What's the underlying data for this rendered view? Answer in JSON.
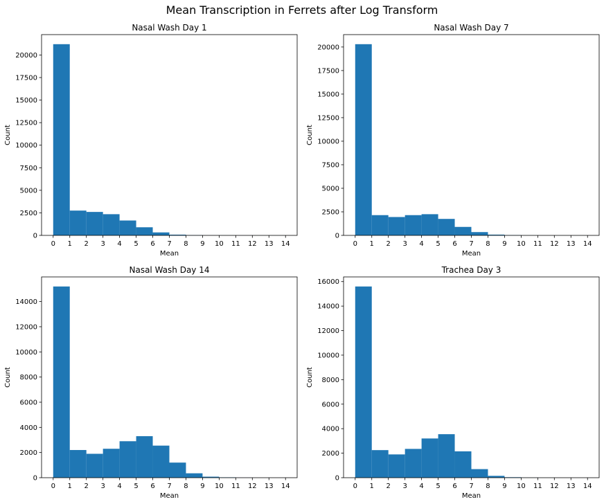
{
  "figure": {
    "suptitle": "Mean Transcription in Ferrets after Log Transform"
  },
  "chart_data": [
    {
      "type": "bar",
      "title": "Nasal Wash Day 1",
      "xlabel": "Mean",
      "ylabel": "Count",
      "color": "#1f77b4",
      "bin_edges": [
        0,
        1,
        2,
        3,
        4,
        5,
        6,
        7,
        8,
        9,
        10,
        11,
        12,
        13,
        14
      ],
      "values": [
        21200,
        2750,
        2600,
        2350,
        1650,
        900,
        330,
        80,
        30,
        10,
        5,
        2,
        1,
        1
      ],
      "xticks": [
        "0",
        "1",
        "2",
        "3",
        "4",
        "5",
        "6",
        "7",
        "8",
        "9",
        "10",
        "11",
        "12",
        "13",
        "14"
      ],
      "yticks": [
        0,
        2500,
        5000,
        7500,
        10000,
        12500,
        15000,
        17500,
        20000
      ],
      "xlim": [
        -0.7,
        14.7
      ],
      "ylim": [
        0,
        22260
      ],
      "grid": false
    },
    {
      "type": "bar",
      "title": "Nasal Wash Day 7",
      "xlabel": "Mean",
      "ylabel": "Count",
      "color": "#1f77b4",
      "bin_edges": [
        0,
        1,
        2,
        3,
        4,
        5,
        6,
        7,
        8,
        9,
        10,
        11,
        12,
        13,
        14
      ],
      "values": [
        20300,
        2150,
        1950,
        2150,
        2250,
        1750,
        900,
        350,
        80,
        30,
        5,
        2,
        1,
        1
      ],
      "xticks": [
        "0",
        "1",
        "2",
        "3",
        "4",
        "5",
        "6",
        "7",
        "8",
        "9",
        "10",
        "11",
        "12",
        "13",
        "14"
      ],
      "yticks": [
        0,
        2500,
        5000,
        7500,
        10000,
        12500,
        15000,
        17500,
        20000
      ],
      "xlim": [
        -0.7,
        14.7
      ],
      "ylim": [
        0,
        21315
      ],
      "grid": false
    },
    {
      "type": "bar",
      "title": "Nasal Wash Day 14",
      "xlabel": "Mean",
      "ylabel": "Count",
      "color": "#1f77b4",
      "bin_edges": [
        0,
        1,
        2,
        3,
        4,
        5,
        6,
        7,
        8,
        9,
        10,
        11,
        12,
        13,
        14
      ],
      "values": [
        15200,
        2200,
        1900,
        2300,
        2900,
        3300,
        2550,
        1200,
        350,
        80,
        30,
        5,
        2,
        1
      ],
      "xticks": [
        "0",
        "1",
        "2",
        "3",
        "4",
        "5",
        "6",
        "7",
        "8",
        "9",
        "10",
        "11",
        "12",
        "13",
        "14"
      ],
      "yticks": [
        0,
        2000,
        4000,
        6000,
        8000,
        10000,
        12000,
        14000
      ],
      "xlim": [
        -0.7,
        14.7
      ],
      "ylim": [
        0,
        15960
      ],
      "grid": false
    },
    {
      "type": "bar",
      "title": "Trachea Day 3",
      "xlabel": "Mean",
      "ylabel": "Count",
      "color": "#1f77b4",
      "bin_edges": [
        0,
        1,
        2,
        3,
        4,
        5,
        6,
        7,
        8,
        9,
        10,
        11,
        12,
        13,
        14
      ],
      "values": [
        15600,
        2250,
        1900,
        2350,
        3200,
        3550,
        2150,
        700,
        150,
        40,
        10,
        3,
        1,
        1
      ],
      "xticks": [
        "0",
        "1",
        "2",
        "3",
        "4",
        "5",
        "6",
        "7",
        "8",
        "9",
        "10",
        "11",
        "12",
        "13",
        "14"
      ],
      "yticks": [
        0,
        2000,
        4000,
        6000,
        8000,
        10000,
        12000,
        14000,
        16000
      ],
      "xlim": [
        -0.7,
        14.7
      ],
      "ylim": [
        0,
        16380
      ],
      "grid": false
    }
  ]
}
